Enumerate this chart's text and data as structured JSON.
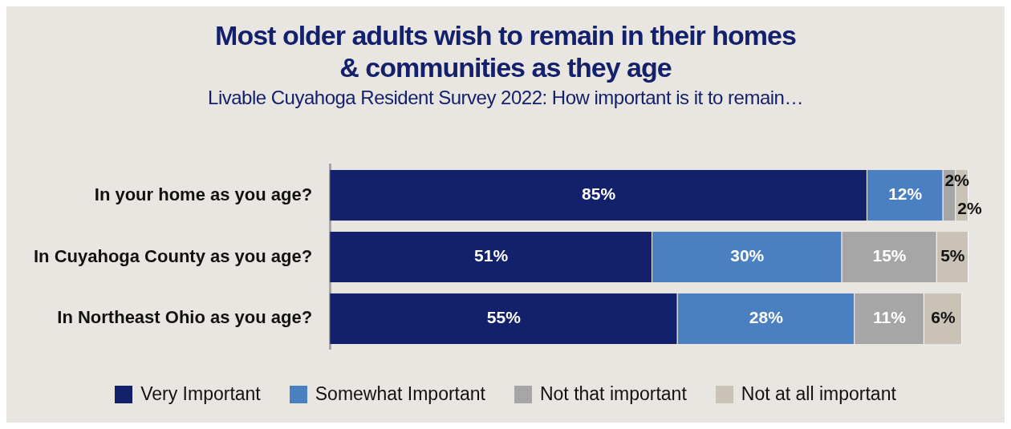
{
  "chart_data": {
    "type": "bar",
    "orientation": "horizontal",
    "stacked": true,
    "title": "Most older adults wish to remain in their homes\n& communities as they age",
    "subtitle": "Livable Cuyahoga Resident Survey 2022: How important is it to remain…",
    "categories": [
      "In your home as you age?",
      "In Cuyahoga County as you age?",
      "In Northeast Ohio as you age?"
    ],
    "series": [
      {
        "name": "Very Important",
        "color": "#13206b",
        "values": [
          85,
          51,
          55
        ],
        "value_labels": [
          "85%",
          "51%",
          "55%"
        ]
      },
      {
        "name": "Somewhat Important",
        "color": "#4a7fc1",
        "values": [
          12,
          30,
          28
        ],
        "value_labels": [
          "12%",
          "30%",
          "28%"
        ]
      },
      {
        "name": "Not that important",
        "color": "#a6a6a6",
        "values": [
          2,
          15,
          11
        ],
        "value_labels": [
          "2%",
          "15%",
          "11%"
        ]
      },
      {
        "name": "Not at all important",
        "color": "#c9c2b5",
        "values": [
          2,
          5,
          6
        ],
        "value_labels": [
          "2%",
          "5%",
          "6%"
        ]
      }
    ],
    "legend": "bottom",
    "tick_labels": "y"
  }
}
